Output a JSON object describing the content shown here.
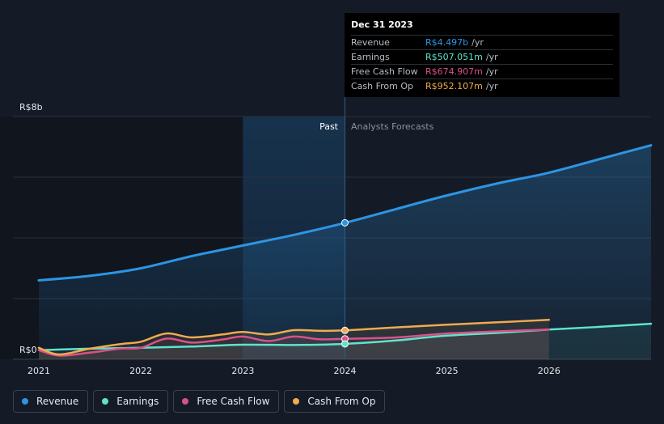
{
  "colors": {
    "revenue": "#2d95e3",
    "earnings": "#5fe3cc",
    "free_cash_flow": "#d8528a",
    "cash_from_op": "#f0aa4f"
  },
  "tooltip": {
    "date": "Dec 31 2023",
    "rows": [
      {
        "name": "Revenue",
        "value": "R$4.497b",
        "unit": "/yr"
      },
      {
        "name": "Earnings",
        "value": "R$507.051m",
        "unit": "/yr"
      },
      {
        "name": "Free Cash Flow",
        "value": "R$674.907m",
        "unit": "/yr"
      },
      {
        "name": "Cash From Op",
        "value": "R$952.107m",
        "unit": "/yr"
      }
    ]
  },
  "legend": [
    {
      "label": "Revenue",
      "key": "revenue"
    },
    {
      "label": "Earnings",
      "key": "earnings"
    },
    {
      "label": "Free Cash Flow",
      "key": "free_cash_flow"
    },
    {
      "label": "Cash From Op",
      "key": "cash_from_op"
    }
  ],
  "chart_data": {
    "type": "line",
    "title": "",
    "xlabel": "",
    "ylabel": "",
    "y_top_label": "R$8b",
    "y_bottom_label": "R$0",
    "ylim": [
      0,
      8
    ],
    "xlim": [
      2020.95,
      2026.95
    ],
    "x_ticks": [
      2021,
      2022,
      2023,
      2024,
      2025,
      2026
    ],
    "x_tick_labels": [
      "2021",
      "2022",
      "2023",
      "2024",
      "2025",
      "2026"
    ],
    "past_label": "Past",
    "forecast_label": "Analysts Forecasts",
    "past_end": 2024.0,
    "highlight_start": 2023.0,
    "series": [
      {
        "name": "Revenue",
        "key": "revenue",
        "points": [
          [
            2021.0,
            2.6
          ],
          [
            2021.5,
            2.75
          ],
          [
            2022.0,
            3.0
          ],
          [
            2022.5,
            3.4
          ],
          [
            2023.0,
            3.75
          ],
          [
            2023.5,
            4.1
          ],
          [
            2024.0,
            4.497
          ],
          [
            2024.5,
            4.95
          ],
          [
            2025.0,
            5.4
          ],
          [
            2025.5,
            5.8
          ],
          [
            2026.0,
            6.15
          ],
          [
            2026.5,
            6.6
          ],
          [
            2027.0,
            7.05
          ]
        ]
      },
      {
        "name": "Earnings",
        "key": "earnings",
        "points": [
          [
            2021.0,
            0.3
          ],
          [
            2021.5,
            0.35
          ],
          [
            2022.0,
            0.38
          ],
          [
            2022.5,
            0.42
          ],
          [
            2023.0,
            0.48
          ],
          [
            2023.5,
            0.47
          ],
          [
            2024.0,
            0.507
          ],
          [
            2024.5,
            0.62
          ],
          [
            2025.0,
            0.78
          ],
          [
            2025.5,
            0.87
          ],
          [
            2026.0,
            0.98
          ],
          [
            2026.5,
            1.07
          ],
          [
            2027.0,
            1.17
          ]
        ]
      },
      {
        "name": "Free Cash Flow",
        "key": "free_cash_flow",
        "points": [
          [
            2021.0,
            0.3
          ],
          [
            2021.2,
            0.12
          ],
          [
            2021.5,
            0.22
          ],
          [
            2021.8,
            0.35
          ],
          [
            2022.0,
            0.38
          ],
          [
            2022.25,
            0.68
          ],
          [
            2022.5,
            0.55
          ],
          [
            2022.8,
            0.65
          ],
          [
            2023.0,
            0.75
          ],
          [
            2023.25,
            0.6
          ],
          [
            2023.5,
            0.75
          ],
          [
            2023.75,
            0.66
          ],
          [
            2024.0,
            0.675
          ],
          [
            2024.5,
            0.72
          ],
          [
            2025.0,
            0.85
          ],
          [
            2025.5,
            0.92
          ],
          [
            2026.0,
            0.98
          ]
        ]
      },
      {
        "name": "Cash From Op",
        "key": "cash_from_op",
        "points": [
          [
            2021.0,
            0.38
          ],
          [
            2021.2,
            0.16
          ],
          [
            2021.5,
            0.35
          ],
          [
            2021.8,
            0.5
          ],
          [
            2022.0,
            0.58
          ],
          [
            2022.25,
            0.85
          ],
          [
            2022.5,
            0.72
          ],
          [
            2022.8,
            0.82
          ],
          [
            2023.0,
            0.9
          ],
          [
            2023.25,
            0.82
          ],
          [
            2023.5,
            0.96
          ],
          [
            2023.75,
            0.94
          ],
          [
            2024.0,
            0.952
          ],
          [
            2024.5,
            1.05
          ],
          [
            2025.0,
            1.14
          ],
          [
            2025.5,
            1.22
          ],
          [
            2026.0,
            1.3
          ]
        ]
      }
    ],
    "markers": [
      {
        "key": "revenue",
        "x": 2024.0,
        "y": 4.497
      },
      {
        "key": "cash_from_op",
        "x": 2024.0,
        "y": 0.952
      },
      {
        "key": "free_cash_flow",
        "x": 2024.0,
        "y": 0.675
      },
      {
        "key": "earnings",
        "x": 2024.0,
        "y": 0.507
      }
    ]
  }
}
